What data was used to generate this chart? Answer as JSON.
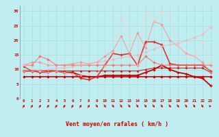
{
  "x": [
    0,
    1,
    2,
    3,
    4,
    5,
    6,
    7,
    8,
    9,
    10,
    11,
    12,
    13,
    14,
    15,
    16,
    17,
    18,
    19,
    20,
    21,
    22,
    23
  ],
  "lines": [
    {
      "y": [
        7.5,
        7.5,
        7.5,
        7.5,
        7.5,
        7.5,
        7.5,
        7.5,
        7.5,
        7.5,
        7.5,
        7.5,
        7.5,
        7.5,
        7.5,
        7.5,
        7.5,
        7.5,
        7.5,
        7.5,
        7.5,
        7.5,
        7.5,
        7.5
      ],
      "color": "#cc0000",
      "lw": 1.2,
      "marker": "D",
      "ms": 1.8,
      "alpha": 1.0,
      "mew": 0.5
    },
    {
      "y": [
        11.0,
        9.5,
        9.0,
        9.0,
        9.5,
        9.5,
        9.5,
        9.5,
        9.5,
        9.5,
        9.5,
        9.5,
        9.5,
        9.5,
        9.5,
        10.0,
        10.5,
        10.5,
        10.5,
        10.5,
        10.5,
        10.5,
        10.5,
        9.0
      ],
      "color": "#cc0000",
      "lw": 0.9,
      "marker": "D",
      "ms": 1.5,
      "alpha": 0.75,
      "mew": 0.5
    },
    {
      "y": [
        9.5,
        9.5,
        9.5,
        9.5,
        9.5,
        9.0,
        9.0,
        8.0,
        7.5,
        7.5,
        8.0,
        8.0,
        8.0,
        8.0,
        8.0,
        9.0,
        10.0,
        11.5,
        10.0,
        9.0,
        8.5,
        7.5,
        7.0,
        4.5
      ],
      "color": "#cc0000",
      "lw": 1.3,
      "marker": "+",
      "ms": 3.0,
      "alpha": 1.0,
      "mew": 1.0
    },
    {
      "y": [
        9.5,
        9.5,
        9.5,
        9.5,
        9.5,
        9.0,
        9.0,
        7.0,
        6.5,
        7.5,
        11.5,
        15.5,
        15.0,
        15.5,
        11.5,
        19.5,
        19.5,
        18.5,
        12.0,
        11.5,
        11.5,
        11.5,
        11.5,
        9.5
      ],
      "color": "#dd2222",
      "lw": 1.2,
      "marker": "+",
      "ms": 3.0,
      "alpha": 0.9,
      "mew": 1.0
    },
    {
      "y": [
        11.5,
        11.5,
        14.5,
        13.5,
        11.5,
        11.5,
        11.5,
        11.5,
        11.5,
        11.5,
        11.5,
        11.5,
        11.5,
        11.5,
        11.5,
        14.5,
        12.5,
        11.5,
        11.5,
        11.5,
        11.5,
        11.5,
        11.5,
        11.5
      ],
      "color": "#ff6666",
      "lw": 0.9,
      "marker": "D",
      "ms": 1.8,
      "alpha": 0.75,
      "mew": 0.5
    },
    {
      "y": [
        11.5,
        12.5,
        12.5,
        11.5,
        11.5,
        11.5,
        12.0,
        12.5,
        12.0,
        12.5,
        14.5,
        16.5,
        21.5,
        15.5,
        22.5,
        17.5,
        26.5,
        25.5,
        20.0,
        18.0,
        15.5,
        14.5,
        12.5,
        9.0
      ],
      "color": "#ff8888",
      "lw": 0.9,
      "marker": "D",
      "ms": 1.8,
      "alpha": 0.65,
      "mew": 0.5
    },
    {
      "y": [
        9.5,
        9.5,
        9.5,
        10.0,
        10.5,
        10.5,
        11.0,
        11.5,
        12.0,
        12.5,
        13.0,
        13.5,
        14.0,
        14.5,
        15.0,
        16.0,
        17.0,
        18.0,
        18.5,
        19.0,
        20.0,
        21.0,
        22.0,
        24.5
      ],
      "color": "#ffaaaa",
      "lw": 0.9,
      "marker": "D",
      "ms": 1.8,
      "alpha": 0.55,
      "mew": 0.5
    },
    {
      "y": [
        11.5,
        10.5,
        9.5,
        9.0,
        9.5,
        9.0,
        8.5,
        8.0,
        8.5,
        9.0,
        11.0,
        15.0,
        28.0,
        21.5,
        11.5,
        30.0,
        26.5,
        30.0,
        28.5,
        18.0,
        15.0,
        14.5,
        19.5,
        12.0
      ],
      "color": "#ffcccc",
      "lw": 0.8,
      "marker": "D",
      "ms": 1.8,
      "alpha": 0.5,
      "mew": 0.5
    }
  ],
  "wind_dirs": [
    225,
    225,
    225,
    225,
    225,
    225,
    225,
    225,
    225,
    315,
    315,
    315,
    315,
    315,
    315,
    315,
    315,
    315,
    315,
    315,
    315,
    315,
    315,
    270
  ],
  "ylim": [
    0,
    32
  ],
  "yticks": [
    0,
    5,
    10,
    15,
    20,
    25,
    30
  ],
  "xlabel": "Vent moyen/en rafales ( km/h )",
  "bg_color": "#c0eef0",
  "grid_color": "#aadddd",
  "text_color": "#cc0000",
  "arrow_color": "#cc0000"
}
